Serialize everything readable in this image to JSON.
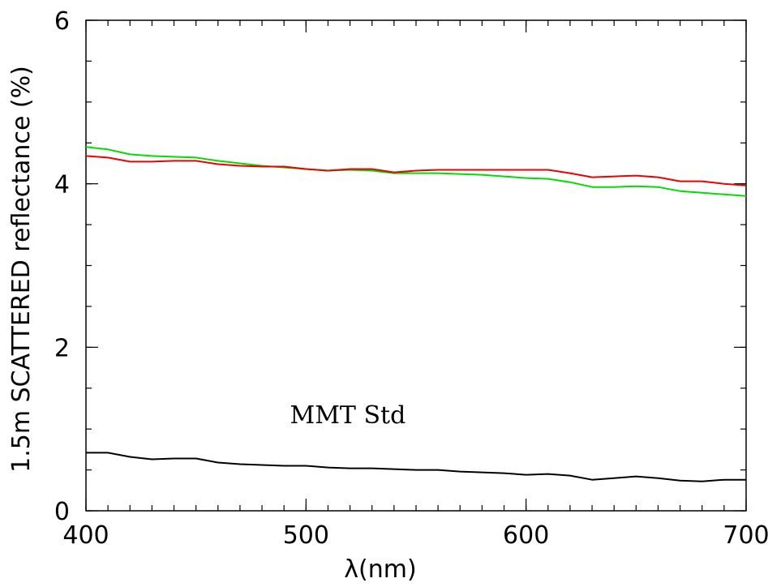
{
  "chart_data": {
    "type": "line",
    "xlabel": "λ(nm)",
    "ylabel": "1.5m SCATTERED reflectance (%)",
    "xlim": [
      400,
      700
    ],
    "ylim": [
      0,
      6
    ],
    "x_ticks": [
      "400",
      "500",
      "600",
      "700"
    ],
    "y_ticks": [
      "0",
      "2",
      "4",
      "6"
    ],
    "x_tick_values": [
      400,
      500,
      600,
      700
    ],
    "y_tick_values": [
      0,
      2,
      4,
      6
    ],
    "x_minor_step": 10,
    "y_minor_step": 0.5,
    "grid": false,
    "annotations": [
      {
        "text": "MMT Std",
        "x": 519,
        "y": 1.07
      }
    ],
    "series": [
      {
        "color": "#00dd00",
        "x": [
          400,
          410,
          420,
          430,
          440,
          450,
          460,
          470,
          480,
          490,
          500,
          510,
          520,
          530,
          540,
          550,
          560,
          570,
          580,
          590,
          600,
          610,
          620,
          630,
          640,
          650,
          660,
          670,
          680,
          690,
          700
        ],
        "y": [
          4.45,
          4.42,
          4.36,
          4.34,
          4.33,
          4.32,
          4.28,
          4.25,
          4.22,
          4.2,
          4.18,
          4.16,
          4.17,
          4.16,
          4.13,
          4.13,
          4.13,
          4.12,
          4.11,
          4.09,
          4.07,
          4.06,
          4.02,
          3.96,
          3.96,
          3.97,
          3.96,
          3.91,
          3.89,
          3.87,
          3.85
        ]
      },
      {
        "color": "#ee0000",
        "x": [
          400,
          410,
          420,
          430,
          440,
          450,
          460,
          470,
          480,
          490,
          500,
          510,
          520,
          530,
          540,
          550,
          560,
          570,
          580,
          590,
          600,
          610,
          620,
          630,
          640,
          650,
          660,
          670,
          680,
          690,
          700
        ],
        "y": [
          4.34,
          4.32,
          4.27,
          4.27,
          4.28,
          4.28,
          4.24,
          4.22,
          4.21,
          4.21,
          4.18,
          4.16,
          4.18,
          4.18,
          4.14,
          4.16,
          4.17,
          4.17,
          4.17,
          4.17,
          4.17,
          4.17,
          4.13,
          4.08,
          4.09,
          4.1,
          4.08,
          4.03,
          4.03,
          4.0,
          3.98
        ]
      },
      {
        "color": "#000000",
        "x": [
          400,
          410,
          420,
          430,
          440,
          450,
          460,
          470,
          480,
          490,
          500,
          510,
          520,
          530,
          540,
          550,
          560,
          570,
          580,
          590,
          600,
          610,
          620,
          630,
          640,
          650,
          660,
          670,
          680,
          690,
          700
        ],
        "y": [
          0.71,
          0.71,
          0.66,
          0.63,
          0.64,
          0.64,
          0.59,
          0.57,
          0.56,
          0.55,
          0.55,
          0.53,
          0.52,
          0.52,
          0.51,
          0.5,
          0.5,
          0.48,
          0.47,
          0.46,
          0.44,
          0.45,
          0.43,
          0.38,
          0.4,
          0.42,
          0.4,
          0.37,
          0.36,
          0.38,
          0.38
        ]
      }
    ]
  }
}
